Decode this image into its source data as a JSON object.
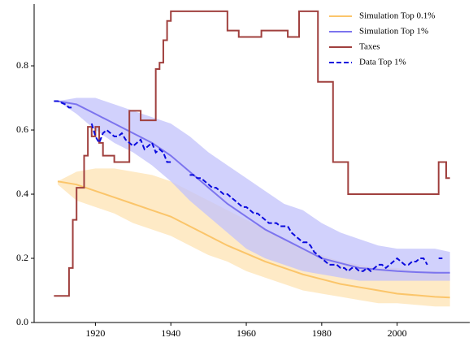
{
  "chart_data": {
    "type": "line",
    "xlim": [
      1903.75,
      2019.25
    ],
    "xticks": [
      1920,
      1940,
      1960,
      1980,
      2000
    ],
    "ylim": [
      0,
      0.99
    ],
    "yticks": [
      {
        "value": 0,
        "label": "0.0"
      },
      0.2,
      0.4,
      0.6,
      0.8
    ],
    "grid": false,
    "legend": "upper right",
    "series": [
      {
        "name": "Simulation Top 0.1%",
        "color": "#fbc56a",
        "band_color": "#fde3b3",
        "style": "solid",
        "x": [
          1910,
          1915,
          1920,
          1925,
          1930,
          1935,
          1940,
          1945,
          1950,
          1955,
          1960,
          1965,
          1970,
          1975,
          1980,
          1985,
          1990,
          1995,
          2000,
          2005,
          2010,
          2014
        ],
        "values": [
          0.44,
          0.43,
          0.41,
          0.39,
          0.37,
          0.35,
          0.33,
          0.3,
          0.27,
          0.24,
          0.215,
          0.19,
          0.17,
          0.15,
          0.135,
          0.12,
          0.11,
          0.1,
          0.09,
          0.085,
          0.08,
          0.078
        ],
        "upper": [
          0.44,
          0.47,
          0.48,
          0.48,
          0.47,
          0.46,
          0.44,
          0.41,
          0.38,
          0.35,
          0.32,
          0.29,
          0.26,
          0.23,
          0.21,
          0.19,
          0.18,
          0.17,
          0.17,
          0.16,
          0.16,
          0.15
        ],
        "lower": [
          0.43,
          0.38,
          0.36,
          0.34,
          0.31,
          0.29,
          0.27,
          0.24,
          0.21,
          0.19,
          0.16,
          0.14,
          0.12,
          0.1,
          0.09,
          0.08,
          0.07,
          0.06,
          0.06,
          0.055,
          0.05,
          0.05
        ]
      },
      {
        "name": "Simulation Top 1%",
        "color": "#7c74ee",
        "band_color": "#c2c2fb",
        "style": "solid",
        "x": [
          1910,
          1915,
          1920,
          1925,
          1930,
          1935,
          1940,
          1945,
          1950,
          1955,
          1960,
          1965,
          1970,
          1975,
          1980,
          1985,
          1990,
          1995,
          2000,
          2005,
          2010,
          2014
        ],
        "values": [
          0.69,
          0.68,
          0.65,
          0.62,
          0.59,
          0.56,
          0.52,
          0.47,
          0.42,
          0.37,
          0.33,
          0.29,
          0.26,
          0.23,
          0.2,
          0.185,
          0.17,
          0.165,
          0.16,
          0.157,
          0.155,
          0.155
        ],
        "upper": [
          0.69,
          0.7,
          0.7,
          0.68,
          0.66,
          0.64,
          0.62,
          0.58,
          0.53,
          0.49,
          0.45,
          0.41,
          0.37,
          0.35,
          0.31,
          0.28,
          0.26,
          0.24,
          0.23,
          0.23,
          0.23,
          0.22
        ],
        "lower": [
          0.69,
          0.65,
          0.6,
          0.56,
          0.53,
          0.49,
          0.44,
          0.38,
          0.33,
          0.28,
          0.23,
          0.2,
          0.18,
          0.16,
          0.15,
          0.14,
          0.13,
          0.13,
          0.13,
          0.13,
          0.13,
          0.13
        ]
      },
      {
        "name": "Taxes",
        "color": "#a0403e",
        "style": "step",
        "x": [
          1909,
          1913,
          1914,
          1915,
          1917,
          1918,
          1919,
          1920,
          1921,
          1922,
          1925,
          1929,
          1932,
          1936,
          1937,
          1938,
          1939,
          1940,
          1955,
          1958,
          1964,
          1971,
          1974,
          1979,
          1983,
          1987,
          2011,
          2013,
          2014
        ],
        "values": [
          0.083,
          0.17,
          0.32,
          0.42,
          0.52,
          0.61,
          0.58,
          0.61,
          0.56,
          0.52,
          0.5,
          0.66,
          0.63,
          0.79,
          0.81,
          0.88,
          0.94,
          0.97,
          0.91,
          0.89,
          0.91,
          0.89,
          0.97,
          0.75,
          0.5,
          0.4,
          0.5,
          0.45,
          0.45
        ]
      },
      {
        "name": "Data Top 1%",
        "color": "#0a0ade",
        "style": "dashed",
        "x": [
          1909,
          1910,
          1911,
          1912,
          1913,
          1914,
          1915,
          1916,
          1917,
          1918,
          1919,
          1920,
          1921,
          1922,
          1923,
          1924,
          1925,
          1926,
          1927,
          1928,
          1929,
          1930,
          1931,
          1932,
          1933,
          1934,
          1935,
          1936,
          1937,
          1938,
          1939,
          1940,
          1941,
          1942,
          1943,
          1944,
          1945,
          1946,
          1947,
          1948,
          1949,
          1950,
          1951,
          1952,
          1953,
          1954,
          1955,
          1956,
          1957,
          1958,
          1959,
          1960,
          1961,
          1962,
          1963,
          1964,
          1965,
          1966,
          1967,
          1968,
          1969,
          1970,
          1971,
          1972,
          1973,
          1974,
          1975,
          1976,
          1977,
          1978,
          1979,
          1980,
          1981,
          1982,
          1983,
          1984,
          1985,
          1986,
          1987,
          1988,
          1989,
          1990,
          1991,
          1992,
          1993,
          1994,
          1995,
          1996,
          1997,
          1998,
          1999,
          2000,
          2001,
          2002,
          2003,
          2004,
          2005,
          2006,
          2007,
          2008,
          2009,
          2010,
          2011,
          2012
        ],
        "values": [
          0.69,
          0.69,
          0.685,
          0.68,
          0.67,
          0.67,
          null,
          null,
          null,
          null,
          0.62,
          0.58,
          0.56,
          0.59,
          0.6,
          0.59,
          0.58,
          0.58,
          0.59,
          0.57,
          0.56,
          0.55,
          0.56,
          0.57,
          0.54,
          0.55,
          0.56,
          0.53,
          0.54,
          0.53,
          0.5,
          0.5,
          null,
          null,
          null,
          null,
          0.46,
          0.46,
          0.45,
          0.45,
          0.44,
          0.43,
          0.42,
          0.42,
          0.41,
          0.4,
          0.4,
          0.39,
          0.38,
          0.37,
          0.36,
          0.36,
          0.35,
          0.34,
          0.34,
          0.33,
          0.32,
          0.31,
          0.31,
          0.31,
          0.3,
          0.3,
          0.3,
          0.28,
          0.27,
          0.26,
          0.25,
          0.25,
          0.24,
          0.22,
          0.21,
          0.2,
          0.19,
          0.18,
          0.18,
          0.18,
          0.17,
          0.17,
          0.16,
          0.17,
          0.17,
          0.16,
          0.16,
          0.17,
          0.16,
          0.17,
          0.18,
          0.18,
          0.17,
          0.18,
          0.19,
          0.2,
          0.19,
          0.18,
          0.18,
          0.19,
          0.19,
          0.2,
          0.2,
          0.18,
          null,
          null,
          0.2,
          0.2
        ]
      }
    ]
  }
}
